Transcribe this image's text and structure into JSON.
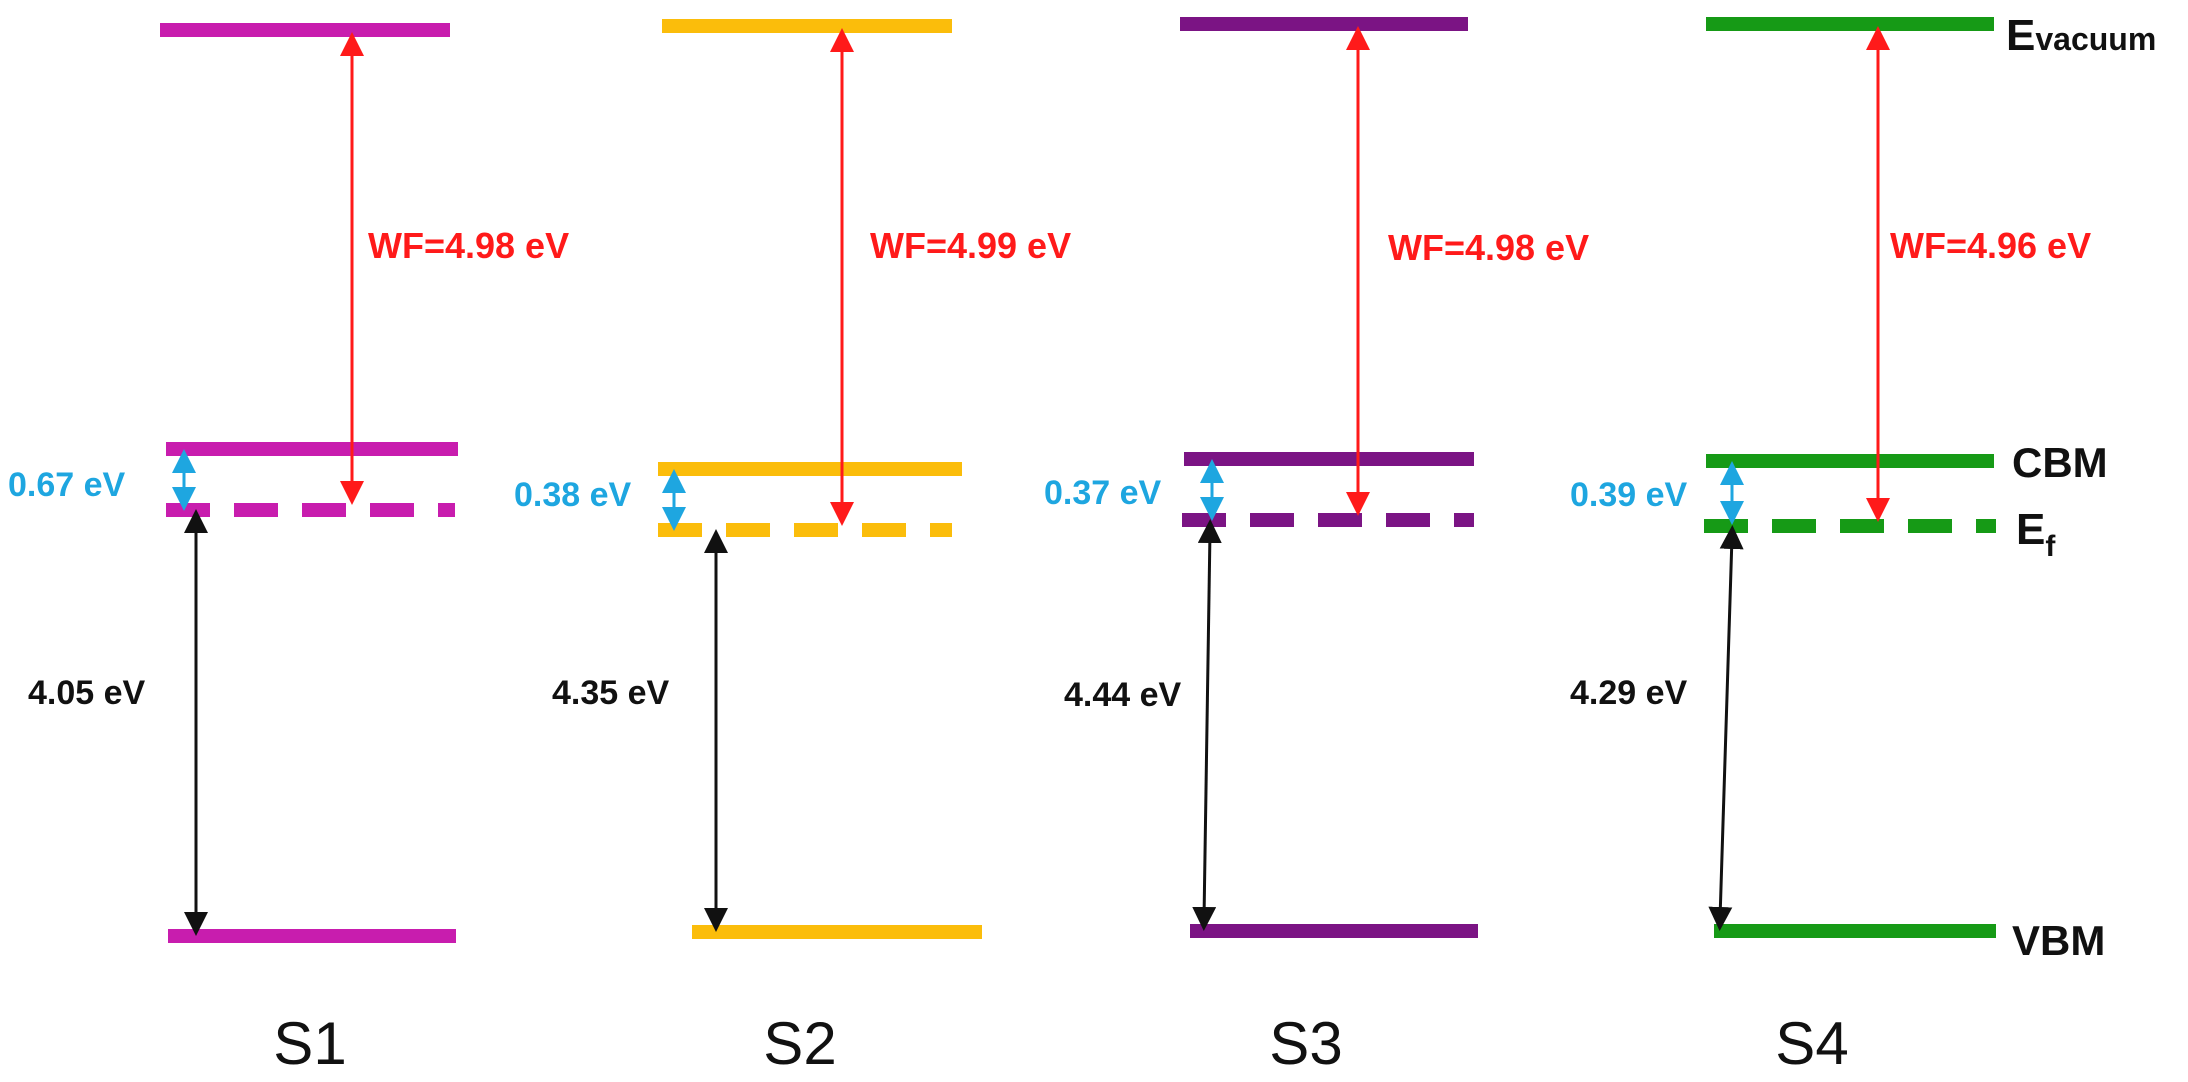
{
  "diagram": {
    "type": "band-energy-level-diagram",
    "colors": {
      "wf_arrow": "#ff1a1a",
      "gap_arrow": "#1ea6e0",
      "bandgap_arrow": "#111111"
    },
    "level_labels": {
      "vacuum_main": "E",
      "vacuum_sub": "vacuum",
      "cbm": "CBM",
      "fermi_main": "E",
      "fermi_sub": "f",
      "vbm": "VBM"
    },
    "samples": [
      {
        "name": "S1",
        "color": "#c81dae",
        "work_function": "WF=4.98 eV",
        "fermi_to_cbm": "0.67 eV",
        "band_gap": "4.05 eV"
      },
      {
        "name": "S2",
        "color": "#fbbd0b",
        "work_function": "WF=4.99 eV",
        "fermi_to_cbm": "0.38 eV",
        "band_gap": "4.35 eV"
      },
      {
        "name": "S3",
        "color": "#7b1484",
        "work_function": "WF=4.98 eV",
        "fermi_to_cbm": "0.37 eV",
        "band_gap": "4.44 eV"
      },
      {
        "name": "S4",
        "color": "#169a16",
        "work_function": "WF=4.96 eV",
        "fermi_to_cbm": "0.39 eV",
        "band_gap": "4.29 eV"
      }
    ]
  }
}
